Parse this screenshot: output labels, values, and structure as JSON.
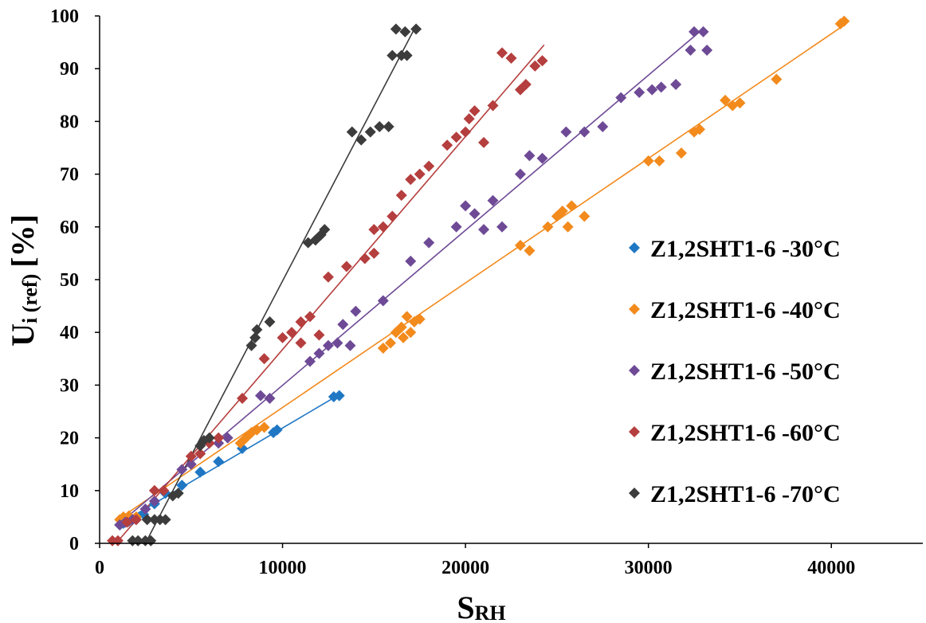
{
  "chart_data": {
    "type": "scatter",
    "title": "",
    "xlabel": {
      "main": "S",
      "sub": "RH"
    },
    "ylabel": {
      "main": "U",
      "sub": "i (ref)",
      "unit": "[%]"
    },
    "xlim": [
      0,
      45000
    ],
    "ylim": [
      0,
      100
    ],
    "xticks": [
      "0",
      "10000",
      "20000",
      "30000",
      "40000"
    ],
    "yticks": [
      "0",
      "10",
      "20",
      "30",
      "40",
      "50",
      "60",
      "70",
      "80",
      "90",
      "100"
    ],
    "grid": false,
    "legend_position": "right",
    "series": [
      {
        "name": "Z1,2SHT1-6 -30°C",
        "color": "#1f77c4",
        "points": [
          [
            1100,
            3.5
          ],
          [
            1300,
            3.8
          ],
          [
            1600,
            4.2
          ],
          [
            2000,
            4.5
          ],
          [
            2400,
            5.5
          ],
          [
            3000,
            7.5
          ],
          [
            3600,
            9.5
          ],
          [
            4500,
            11
          ],
          [
            5500,
            13.5
          ],
          [
            6500,
            15.5
          ],
          [
            7800,
            18
          ],
          [
            9500,
            21
          ],
          [
            9700,
            21.5
          ],
          [
            12800,
            27.8
          ],
          [
            13100,
            28
          ]
        ],
        "trend": [
          [
            1000,
            3.5
          ],
          [
            13000,
            28
          ]
        ]
      },
      {
        "name": "Z1,2SHT1-6 -40°C",
        "color": "#f28a1c",
        "points": [
          [
            1100,
            4.5
          ],
          [
            1300,
            5
          ],
          [
            1600,
            5.2
          ],
          [
            2000,
            5
          ],
          [
            7700,
            19
          ],
          [
            8000,
            20
          ],
          [
            8300,
            21
          ],
          [
            8600,
            21.5
          ],
          [
            9000,
            22
          ],
          [
            15500,
            37
          ],
          [
            15900,
            38
          ],
          [
            16200,
            40
          ],
          [
            16500,
            41
          ],
          [
            16800,
            43
          ],
          [
            17200,
            42
          ],
          [
            17500,
            42.5
          ],
          [
            16600,
            39
          ],
          [
            17000,
            40
          ],
          [
            23000,
            56.5
          ],
          [
            23500,
            55.5
          ],
          [
            24500,
            60
          ],
          [
            25000,
            62
          ],
          [
            25300,
            63
          ],
          [
            25800,
            64
          ],
          [
            26500,
            62
          ],
          [
            25600,
            60
          ],
          [
            30000,
            72.5
          ],
          [
            30600,
            72.5
          ],
          [
            31800,
            74
          ],
          [
            32500,
            78
          ],
          [
            32800,
            78.5
          ],
          [
            34200,
            84
          ],
          [
            34600,
            83
          ],
          [
            35000,
            83.5
          ],
          [
            37000,
            88
          ],
          [
            40500,
            98.5
          ],
          [
            40700,
            99
          ]
        ],
        "trend": [
          [
            1000,
            4.5
          ],
          [
            40800,
            98.5
          ]
        ]
      },
      {
        "name": "Z1,2SHT1-6 -50°C",
        "color": "#6e4a96",
        "points": [
          [
            1100,
            3.5
          ],
          [
            1400,
            4
          ],
          [
            1800,
            4.5
          ],
          [
            2500,
            6.5
          ],
          [
            3000,
            8
          ],
          [
            4500,
            14
          ],
          [
            5000,
            15
          ],
          [
            6500,
            19
          ],
          [
            7000,
            20
          ],
          [
            8800,
            28
          ],
          [
            9300,
            27.5
          ],
          [
            11500,
            34.5
          ],
          [
            12000,
            36
          ],
          [
            12500,
            37.5
          ],
          [
            13000,
            38
          ],
          [
            13300,
            41.5
          ],
          [
            13700,
            37.5
          ],
          [
            14000,
            44
          ],
          [
            15500,
            46
          ],
          [
            17000,
            53.5
          ],
          [
            18000,
            57
          ],
          [
            19500,
            60
          ],
          [
            20000,
            64
          ],
          [
            20500,
            62.5
          ],
          [
            21000,
            59.5
          ],
          [
            21500,
            65
          ],
          [
            22000,
            60
          ],
          [
            23000,
            70
          ],
          [
            23500,
            73.5
          ],
          [
            24200,
            73
          ],
          [
            25500,
            78
          ],
          [
            26500,
            78
          ],
          [
            27500,
            79
          ],
          [
            28500,
            84.5
          ],
          [
            29500,
            85.5
          ],
          [
            30200,
            86
          ],
          [
            30700,
            86.5
          ],
          [
            31500,
            87
          ],
          [
            32300,
            93.5
          ],
          [
            32500,
            97
          ],
          [
            33000,
            97
          ],
          [
            33200,
            93.5
          ]
        ],
        "trend": [
          [
            1000,
            3.5
          ],
          [
            32800,
            97
          ]
        ]
      },
      {
        "name": "Z1,2SHT1-6 -60°C",
        "color": "#b53e3e",
        "points": [
          [
            700,
            0.5
          ],
          [
            1000,
            0.5
          ],
          [
            1500,
            4
          ],
          [
            2000,
            4.5
          ],
          [
            3000,
            10
          ],
          [
            3500,
            10
          ],
          [
            5000,
            16.5
          ],
          [
            5500,
            17
          ],
          [
            6000,
            19
          ],
          [
            6500,
            20
          ],
          [
            7800,
            27.5
          ],
          [
            9000,
            35
          ],
          [
            10000,
            39
          ],
          [
            10500,
            40
          ],
          [
            11000,
            42
          ],
          [
            11500,
            43
          ],
          [
            11000,
            38
          ],
          [
            12000,
            39.5
          ],
          [
            12500,
            50.5
          ],
          [
            13500,
            52.5
          ],
          [
            14500,
            54
          ],
          [
            15000,
            55
          ],
          [
            15000,
            59.5
          ],
          [
            15500,
            60
          ],
          [
            16000,
            62
          ],
          [
            16500,
            66
          ],
          [
            17000,
            69
          ],
          [
            17500,
            70
          ],
          [
            18000,
            71.5
          ],
          [
            19000,
            75.5
          ],
          [
            19500,
            77
          ],
          [
            20000,
            78
          ],
          [
            20200,
            80.5
          ],
          [
            20500,
            82
          ],
          [
            21000,
            76
          ],
          [
            21500,
            83
          ],
          [
            22000,
            93
          ],
          [
            22500,
            92
          ],
          [
            23000,
            86
          ],
          [
            23300,
            87
          ],
          [
            23800,
            90.5
          ],
          [
            24200,
            91.5
          ]
        ],
        "trend": [
          [
            900,
            0
          ],
          [
            24300,
            94.5
          ]
        ]
      },
      {
        "name": "Z1,2SHT1-6 -70°C",
        "color": "#3c3c3c",
        "points": [
          [
            1800,
            0.5
          ],
          [
            2100,
            0.5
          ],
          [
            2500,
            0.5
          ],
          [
            2800,
            0.5
          ],
          [
            2600,
            4.5
          ],
          [
            3000,
            4.5
          ],
          [
            3300,
            4.5
          ],
          [
            3600,
            4.5
          ],
          [
            4000,
            9
          ],
          [
            4300,
            9.5
          ],
          [
            5500,
            18.5
          ],
          [
            5700,
            19.5
          ],
          [
            6000,
            20
          ],
          [
            8300,
            37.5
          ],
          [
            8500,
            39
          ],
          [
            8600,
            40.5
          ],
          [
            9300,
            42
          ],
          [
            11400,
            57
          ],
          [
            11800,
            57.5
          ],
          [
            12100,
            58.5
          ],
          [
            12300,
            59.5
          ],
          [
            13800,
            78
          ],
          [
            14300,
            76.5
          ],
          [
            14800,
            78
          ],
          [
            15300,
            79
          ],
          [
            15800,
            79
          ],
          [
            16000,
            92.5
          ],
          [
            16500,
            92.5
          ],
          [
            16800,
            92.5
          ],
          [
            16200,
            97.5
          ],
          [
            16700,
            97
          ],
          [
            17300,
            97.5
          ]
        ],
        "trend": [
          [
            2500,
            0
          ],
          [
            17200,
            97.5
          ]
        ]
      }
    ]
  }
}
